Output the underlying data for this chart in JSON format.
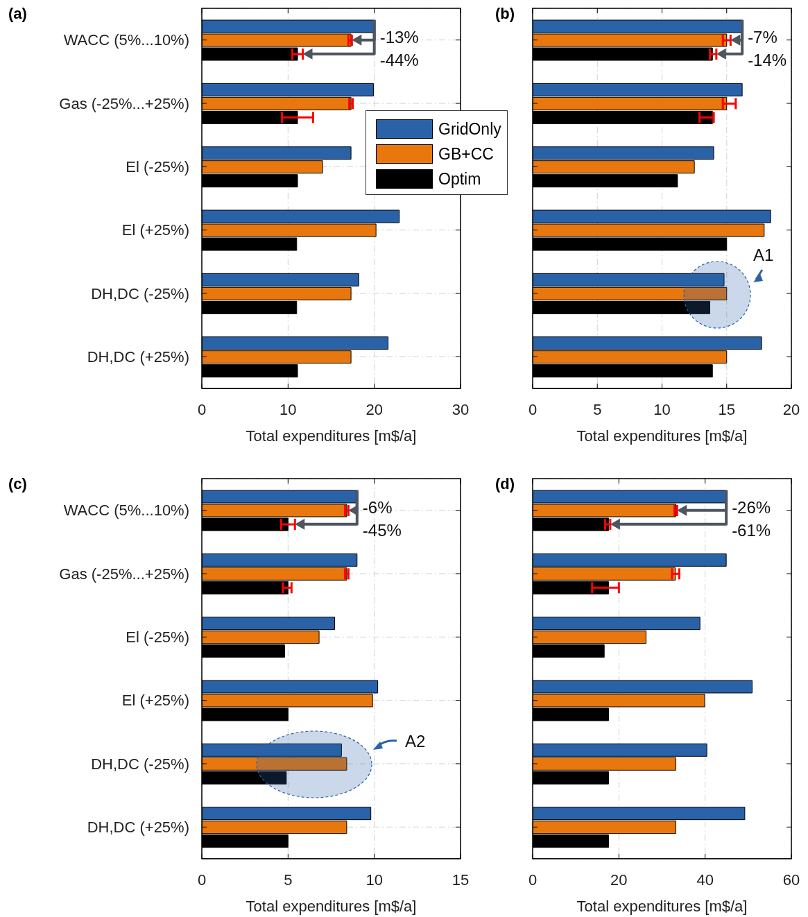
{
  "chart_data": [
    {
      "type": "bar",
      "orientation": "horizontal",
      "title": "(a)",
      "xlabel": "Total expenditures [m$/a]",
      "categories": [
        "WACC (5%...10%)",
        "Gas (-25%...+25%)",
        "El (-25%)",
        "El (+25%)",
        "DH,DC (-25%)",
        "DH,DC (+25%)"
      ],
      "xlim": [
        0,
        30
      ],
      "xticks": [
        0,
        10,
        20,
        30
      ],
      "grid": true,
      "legend": "top right",
      "series": [
        {
          "name": "GridOnly",
          "color": "#2a62a8",
          "values": [
            20.0,
            19.9,
            17.3,
            22.9,
            18.2,
            21.6
          ]
        },
        {
          "name": "GB+CC",
          "color": "#e8770e",
          "values": [
            17.3,
            17.3,
            14.0,
            20.2,
            17.3,
            17.3
          ],
          "errors": [
            [
              17.0,
              17.4
            ],
            [
              17.1,
              17.5
            ],
            null,
            null,
            null,
            null
          ]
        },
        {
          "name": "Optim",
          "color": "#000000",
          "values": [
            11.1,
            11.1,
            11.1,
            11.0,
            11.0,
            11.1
          ],
          "errors": [
            [
              10.5,
              11.7
            ],
            [
              9.3,
              12.9
            ],
            null,
            null,
            null,
            null
          ]
        }
      ],
      "annotations": [
        "-13%",
        "-44%"
      ]
    },
    {
      "type": "bar",
      "orientation": "horizontal",
      "title": "(b)",
      "xlabel": "Total expenditures [m$/a]",
      "categories": [
        null,
        null,
        null,
        null,
        null,
        null
      ],
      "xlim": [
        0,
        20
      ],
      "xticks": [
        0,
        5,
        10,
        15,
        20
      ],
      "grid": true,
      "tick_labels": "x",
      "series": [
        {
          "color": "#2a62a8",
          "values": [
            16.2,
            16.2,
            14.0,
            18.4,
            14.8,
            17.7
          ]
        },
        {
          "color": "#e8770e",
          "values": [
            15.0,
            15.0,
            12.5,
            17.9,
            15.0,
            15.0
          ],
          "errors": [
            [
              14.7,
              15.3
            ],
            [
              14.7,
              15.7
            ],
            null,
            null,
            null,
            null
          ]
        },
        {
          "color": "#000000",
          "values": [
            13.9,
            13.9,
            11.2,
            15.0,
            13.7,
            13.9
          ],
          "errors": [
            [
              13.7,
              14.2
            ],
            [
              12.9,
              14.0
            ],
            null,
            null,
            null,
            null
          ]
        }
      ],
      "annotations": [
        "-7%",
        "-14%",
        "A1"
      ]
    },
    {
      "type": "bar",
      "orientation": "horizontal",
      "title": "(c)",
      "xlabel": "Total expenditures [m$/a]",
      "categories": [
        "WACC (5%...10%)",
        "Gas (-25%...+25%)",
        "El (-25%)",
        "El (+25%)",
        "DH,DC (-25%)",
        "DH,DC (+25%)"
      ],
      "xlim": [
        0,
        15
      ],
      "xticks": [
        0,
        5,
        10,
        15
      ],
      "grid": true,
      "series": [
        {
          "color": "#2a62a8",
          "values": [
            9.0,
            9.0,
            7.7,
            10.2,
            8.1,
            9.8
          ]
        },
        {
          "color": "#e8770e",
          "values": [
            8.4,
            8.4,
            6.8,
            9.9,
            8.4,
            8.4
          ],
          "errors": [
            [
              8.3,
              8.5
            ],
            [
              8.3,
              8.5
            ],
            null,
            null,
            null,
            null
          ]
        },
        {
          "color": "#000000",
          "values": [
            5.0,
            5.0,
            4.8,
            5.0,
            4.9,
            5.0
          ],
          "errors": [
            [
              4.6,
              5.4
            ],
            [
              4.7,
              5.2
            ],
            null,
            null,
            null,
            null
          ]
        }
      ],
      "annotations": [
        "-6%",
        "-45%",
        "A2"
      ]
    },
    {
      "type": "bar",
      "orientation": "horizontal",
      "title": "(d)",
      "xlabel": "Total expenditures [m$/a]",
      "categories": [
        null,
        null,
        null,
        null,
        null,
        null
      ],
      "xlim": [
        0,
        60
      ],
      "xticks": [
        0,
        20,
        40,
        60
      ],
      "grid": true,
      "tick_labels": "x",
      "series": [
        {
          "color": "#2a62a8",
          "values": [
            44.9,
            44.9,
            38.8,
            50.9,
            40.4,
            49.2
          ]
        },
        {
          "color": "#e8770e",
          "values": [
            33.2,
            33.1,
            26.3,
            39.9,
            33.2,
            33.2
          ],
          "errors": [
            [
              32.9,
              33.5
            ],
            [
              32.3,
              34.0
            ],
            null,
            null,
            null,
            null
          ]
        },
        {
          "color": "#000000",
          "values": [
            17.6,
            17.6,
            16.6,
            17.6,
            17.6,
            17.6
          ],
          "errors": [
            [
              16.8,
              18.0
            ],
            [
              13.8,
              20.0
            ],
            null,
            null,
            null,
            null
          ]
        }
      ],
      "annotations": [
        "-26%",
        "-61%"
      ]
    }
  ]
}
